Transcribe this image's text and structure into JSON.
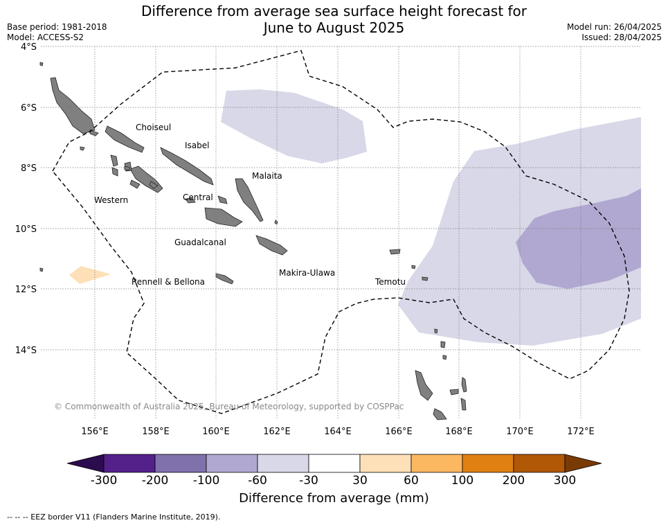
{
  "header": {
    "title_line1": "Difference from average sea surface height forecast for",
    "title_line2": "June to August 2025",
    "base_period": "Base period: 1981-2018",
    "model": "Model: ACCESS-S2",
    "model_run": "Model run: 26/04/2025",
    "issued": "Issued: 28/04/2025"
  },
  "map": {
    "lat_labels": [
      "4°S",
      "6°S",
      "8°S",
      "10°S",
      "12°S",
      "14°S"
    ],
    "lon_labels": [
      "156°E",
      "158°E",
      "160°E",
      "162°E",
      "164°E",
      "166°E",
      "168°E",
      "170°E",
      "172°E"
    ],
    "regions": [
      "Choiseul",
      "Isabel",
      "Malaita",
      "Western",
      "Central",
      "Guadalcanal",
      "Makira-Ulawa",
      "Rennell & Bellona",
      "Temotu"
    ],
    "copyright": "© Commonwealth of Australia 2025, Bureau of Meteorology, supported by COSPPac",
    "colors": {
      "land": "#808080",
      "neg_30_60": "#d8d8e8",
      "neg_60_100": "#b0a8d0",
      "pos_30_60": "#fde0b8",
      "eez_line": "#000000",
      "grid": "#777777"
    }
  },
  "colorbar": {
    "tick_labels": [
      "-300",
      "-200",
      "-100",
      "-60",
      "-30",
      "30",
      "60",
      "100",
      "200",
      "300"
    ],
    "colors": [
      "#2b0c4e",
      "#54208a",
      "#8070ac",
      "#b0a8d0",
      "#d8d8e8",
      "#ffffff",
      "#fde0b8",
      "#fbb860",
      "#e08012",
      "#b05806",
      "#7a3a06"
    ],
    "title": "Difference from average (mm)"
  },
  "footnote": "--  --  -- EEZ border V11 (Flanders Marine Institute, 2019)."
}
